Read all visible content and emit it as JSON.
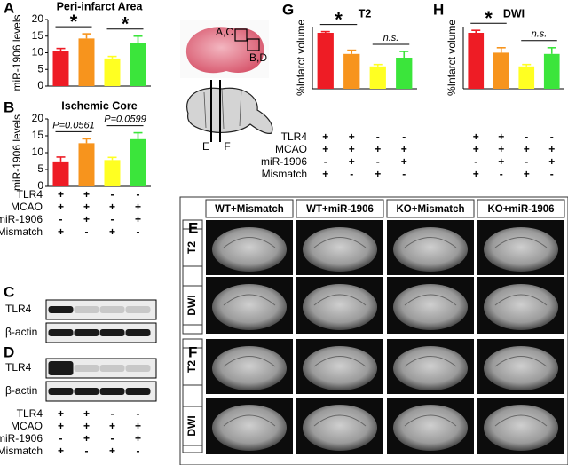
{
  "chart_data": [
    {
      "type": "bar",
      "title": "Peri-infarct Area",
      "y_label": "miR-1906 levels",
      "categories": [
        null,
        null,
        null,
        null
      ],
      "values": [
        10.5,
        14.3,
        8.3,
        12.8
      ],
      "errors": [
        0.8,
        1.4,
        0.6,
        2.2
      ],
      "colors": [
        "#ee1c25",
        "#f7941d",
        "#ffff22",
        "#3be53b"
      ],
      "ylim": [
        0,
        20
      ],
      "yticks": [
        0,
        5,
        10,
        15,
        20
      ],
      "annotations": [
        "*",
        "*"
      ]
    },
    {
      "type": "bar",
      "title": "Ischemic Core",
      "y_label": "miR-1906 levels",
      "categories": [
        null,
        null,
        null,
        null
      ],
      "values": [
        7.4,
        12.8,
        7.8,
        14.0
      ],
      "errors": [
        1.3,
        1.3,
        0.8,
        1.9
      ],
      "colors": [
        "#ee1c25",
        "#f7941d",
        "#ffff22",
        "#3be53b"
      ],
      "ylim": [
        0,
        20
      ],
      "yticks": [
        0,
        5,
        10,
        15,
        20
      ],
      "annotations": [
        "P=0.0561",
        "P=0.0599"
      ]
    },
    {
      "type": "bar",
      "title": "T2",
      "y_label": "%Infarct volume",
      "categories": [
        null,
        null,
        null,
        null
      ],
      "values": [
        0.45,
        0.28,
        0.18,
        0.25
      ],
      "errors": [
        0.01,
        0.03,
        0.015,
        0.05
      ],
      "colors": [
        "#ee1c25",
        "#f7941d",
        "#ffff22",
        "#3be53b"
      ],
      "ylim": [
        0,
        0.5
      ],
      "annotations": [
        "*",
        "n.s."
      ]
    },
    {
      "type": "bar",
      "title": "DWI",
      "y_label": "%Infarct volume",
      "categories": [
        null,
        null,
        null,
        null
      ],
      "values": [
        0.45,
        0.29,
        0.18,
        0.28
      ],
      "errors": [
        0.02,
        0.04,
        0.015,
        0.05
      ],
      "colors": [
        "#ee1c25",
        "#f7941d",
        "#ffff22",
        "#3be53b"
      ],
      "ylim": [
        0,
        0.5
      ],
      "annotations": [
        "*",
        "n.s."
      ]
    }
  ],
  "panel_labels": [
    "A",
    "B",
    "C",
    "D",
    "G",
    "H",
    "E",
    "F"
  ],
  "tables": [
    {
      "rows": [
        {
          "label": "TLR4",
          "marks": [
            "+",
            "+",
            "-",
            "-"
          ]
        },
        {
          "label": "MCAO",
          "marks": [
            "+",
            "+",
            "+",
            "+"
          ]
        },
        {
          "label": "miR-1906",
          "marks": [
            "-",
            "+",
            "-",
            "+"
          ]
        },
        {
          "label": "Mismatch",
          "marks": [
            "+",
            "-",
            "+",
            "-"
          ]
        }
      ]
    },
    {
      "rows": [
        {
          "label": "TLR4",
          "marks": [
            "+",
            "+",
            "-",
            "-"
          ]
        },
        {
          "label": "MCAO",
          "marks": [
            "+",
            "+",
            "+",
            "+"
          ]
        },
        {
          "label": "miR-1906",
          "marks": [
            "-",
            "+",
            "-",
            "+"
          ]
        },
        {
          "label": "Mismatch",
          "marks": [
            "+",
            "-",
            "+",
            "-"
          ]
        }
      ]
    },
    {
      "rows": [
        {
          "label": "TLR4",
          "marks": [
            "+",
            "+",
            "-",
            "-",
            "+",
            "+",
            "-",
            "-"
          ]
        },
        {
          "label": "MCAO",
          "marks": [
            "+",
            "+",
            "+",
            "+",
            "+",
            "+",
            "+",
            "+"
          ]
        },
        {
          "label": "miR-1906",
          "marks": [
            "-",
            "+",
            "-",
            "+",
            "-",
            "+",
            "-",
            "+"
          ]
        },
        {
          "label": "Mismatch",
          "marks": [
            "+",
            "-",
            "+",
            "-",
            "+",
            "-",
            "+",
            "-"
          ]
        }
      ]
    }
  ],
  "blots": [
    {
      "rows": [
        "TLR4",
        "β-actin"
      ]
    },
    {
      "rows": [
        "TLR4",
        "β-actin"
      ]
    }
  ],
  "brain": {
    "regions": [
      "A,C",
      "B,D"
    ],
    "sections": [
      "E",
      "F"
    ]
  },
  "mri": {
    "columns": [
      "WT+Mismatch",
      "WT+miR-1906",
      "KO+Mismatch",
      "KO+miR-1906"
    ],
    "groups": [
      {
        "label": "E",
        "rows": [
          "T2",
          "DWI"
        ]
      },
      {
        "label": "F",
        "rows": [
          "T2",
          "DWI"
        ]
      }
    ]
  }
}
